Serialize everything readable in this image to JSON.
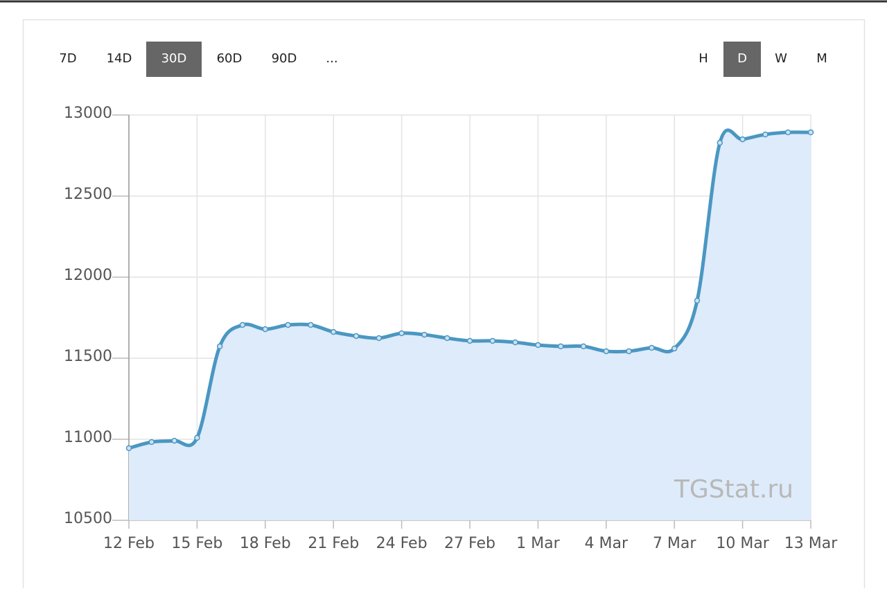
{
  "controls": {
    "periods": [
      "7D",
      "14D",
      "30D",
      "60D",
      "90D",
      "..."
    ],
    "active_period": 2,
    "intervals": [
      "H",
      "D",
      "W",
      "M"
    ],
    "active_interval": 1
  },
  "chart_data": {
    "type": "line",
    "categories": [
      "12 Feb",
      null,
      null,
      "15 Feb",
      null,
      null,
      "18 Feb",
      null,
      null,
      "21 Feb",
      null,
      null,
      "24 Feb",
      null,
      null,
      "27 Feb",
      null,
      null,
      "1 Mar",
      null,
      null,
      "4 Mar",
      null,
      null,
      "7 Mar",
      null,
      null,
      "10 Mar",
      null,
      null,
      "13 Mar"
    ],
    "values": [
      10945,
      10983,
      10991,
      11009,
      11573,
      11705,
      11679,
      11705,
      11705,
      11662,
      11637,
      11624,
      11654,
      11645,
      11624,
      11607,
      11607,
      11598,
      11581,
      11573,
      11573,
      11543,
      11543,
      11564,
      11560,
      11855,
      12829,
      12850,
      12880,
      12893,
      12893
    ],
    "color": "#4a97c2",
    "fill_color": "#deebfa",
    "ylim": [
      10500,
      13000
    ],
    "yticks": [
      10500,
      11000,
      11500,
      12000,
      12500,
      13000
    ],
    "grid": true,
    "watermark": "TGStat.ru"
  }
}
